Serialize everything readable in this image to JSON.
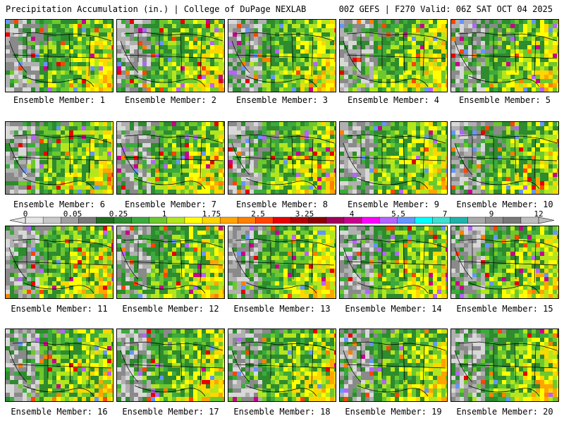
{
  "header": {
    "title": "Precipitation Accumulation (in.) | College of DuPage NEXLAB",
    "run": "00Z GEFS | F270 Valid: 06Z SAT OCT 04 2025"
  },
  "members": [
    "Ensemble Member: 1",
    "Ensemble Member: 2",
    "Ensemble Member: 3",
    "Ensemble Member: 4",
    "Ensemble Member: 5",
    "Ensemble Member: 6",
    "Ensemble Member: 7",
    "Ensemble Member: 8",
    "Ensemble Member: 9",
    "Ensemble Member: 10",
    "Ensemble Member: 11",
    "Ensemble Member: 12",
    "Ensemble Member: 13",
    "Ensemble Member: 14",
    "Ensemble Member: 15",
    "Ensemble Member: 16",
    "Ensemble Member: 17",
    "Ensemble Member: 18",
    "Ensemble Member: 19",
    "Ensemble Member: 20"
  ],
  "colorbar": {
    "labels": [
      "0",
      "0.05",
      "0.25",
      "1",
      "1.75",
      "2.5",
      "3.25",
      "4",
      "5.5",
      "7",
      "9",
      "12"
    ],
    "colors": [
      "#e6e6e6",
      "#c8c8c8",
      "#a0a0a0",
      "#7a7a7a",
      "#1e6e1e",
      "#2e8b2e",
      "#3caa3c",
      "#6dc82d",
      "#b4e61e",
      "#ffff00",
      "#ffd700",
      "#ffa500",
      "#ff7f00",
      "#ff4500",
      "#e60000",
      "#b40000",
      "#8b0000",
      "#a0005a",
      "#c8008c",
      "#ff00ff",
      "#b464ff",
      "#6496ff",
      "#00ffff",
      "#40e0d0",
      "#20b2aa",
      "#a9a9a9",
      "#909090",
      "#787878",
      "#bebebe"
    ]
  }
}
